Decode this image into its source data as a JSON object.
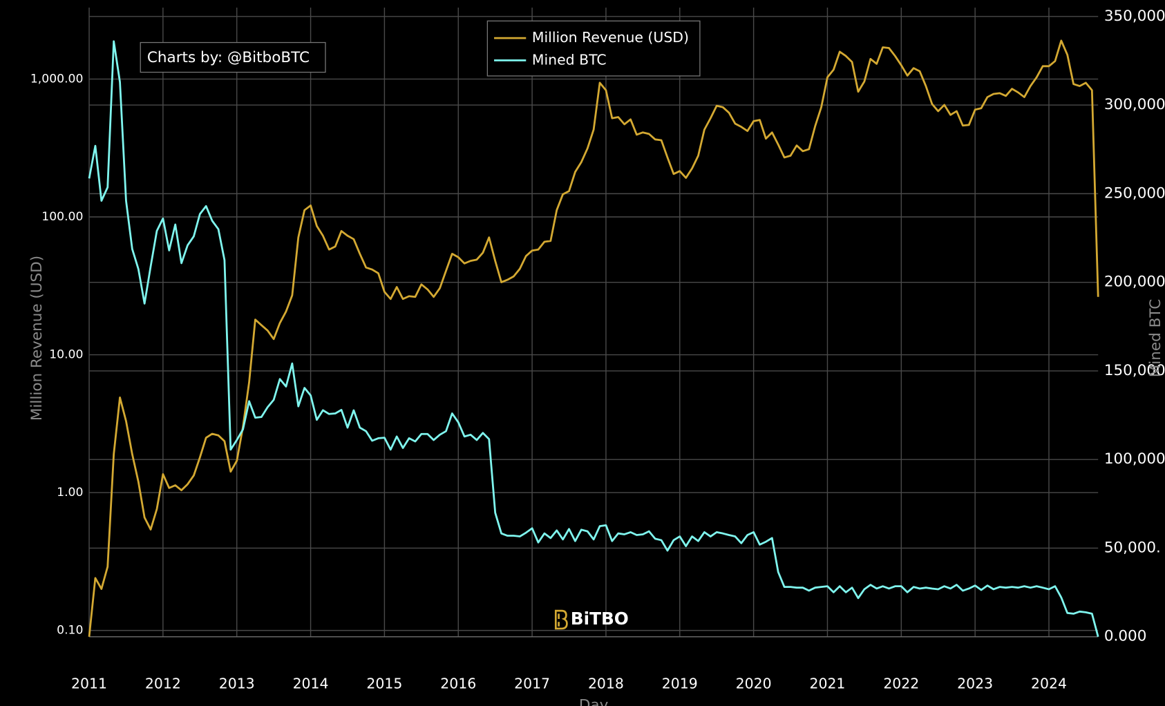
{
  "chart_data": {
    "type": "line",
    "annotation": "Charts by: @BitboBTC",
    "watermark": "BiTBO",
    "xlabel": "Day",
    "ylabel": "Million Revenue (USD)",
    "y2label": "Mined BTC",
    "legend": "top",
    "grid": true,
    "ylog": true,
    "xlim": [
      "2011-01",
      "2024-09"
    ],
    "xticks": [
      2011,
      2012,
      2013,
      2014,
      2015,
      2016,
      2017,
      2018,
      2019,
      2020,
      2021,
      2022,
      2023,
      2024
    ],
    "ylim": [
      0.09,
      3300
    ],
    "yticks": [
      {
        "value": 0.1,
        "label": "0.10"
      },
      {
        "value": 1,
        "label": "1.00"
      },
      {
        "value": 10,
        "label": "10.00"
      },
      {
        "value": 100,
        "label": "100.00"
      },
      {
        "value": 1000,
        "label": "1,000.00"
      }
    ],
    "y2lim": [
      0,
      355000
    ],
    "y2ticks": [
      {
        "value": 0,
        "label": "0.000"
      },
      {
        "value": 50000,
        "label": "50,000."
      },
      {
        "value": 100000,
        "label": "100,000"
      },
      {
        "value": 150000,
        "label": "150,000"
      },
      {
        "value": 200000,
        "label": "200,000"
      },
      {
        "value": 250000,
        "label": "250,000"
      },
      {
        "value": 300000,
        "label": "300,000"
      },
      {
        "value": 350000,
        "label": "350,000"
      }
    ],
    "x": [
      "2011-01",
      "2011-02",
      "2011-03",
      "2011-04",
      "2011-05",
      "2011-06",
      "2011-07",
      "2011-08",
      "2011-09",
      "2011-10",
      "2011-11",
      "2011-12",
      "2012-01",
      "2012-02",
      "2012-03",
      "2012-04",
      "2012-05",
      "2012-06",
      "2012-07",
      "2012-08",
      "2012-09",
      "2012-10",
      "2012-11",
      "2012-12",
      "2013-01",
      "2013-02",
      "2013-03",
      "2013-04",
      "2013-05",
      "2013-06",
      "2013-07",
      "2013-08",
      "2013-09",
      "2013-10",
      "2013-11",
      "2013-12",
      "2014-01",
      "2014-02",
      "2014-03",
      "2014-04",
      "2014-05",
      "2014-06",
      "2014-07",
      "2014-08",
      "2014-09",
      "2014-10",
      "2014-11",
      "2014-12",
      "2015-01",
      "2015-02",
      "2015-03",
      "2015-04",
      "2015-05",
      "2015-06",
      "2015-07",
      "2015-08",
      "2015-09",
      "2015-10",
      "2015-11",
      "2015-12",
      "2016-01",
      "2016-02",
      "2016-03",
      "2016-04",
      "2016-05",
      "2016-06",
      "2016-07",
      "2016-08",
      "2016-09",
      "2016-10",
      "2016-11",
      "2016-12",
      "2017-01",
      "2017-02",
      "2017-03",
      "2017-04",
      "2017-05",
      "2017-06",
      "2017-07",
      "2017-08",
      "2017-09",
      "2017-10",
      "2017-11",
      "2017-12",
      "2018-01",
      "2018-02",
      "2018-03",
      "2018-04",
      "2018-05",
      "2018-06",
      "2018-07",
      "2018-08",
      "2018-09",
      "2018-10",
      "2018-11",
      "2018-12",
      "2019-01",
      "2019-02",
      "2019-03",
      "2019-04",
      "2019-05",
      "2019-06",
      "2019-07",
      "2019-08",
      "2019-09",
      "2019-10",
      "2019-11",
      "2019-12",
      "2020-01",
      "2020-02",
      "2020-03",
      "2020-04",
      "2020-05",
      "2020-06",
      "2020-07",
      "2020-08",
      "2020-09",
      "2020-10",
      "2020-11",
      "2020-12",
      "2021-01",
      "2021-02",
      "2021-03",
      "2021-04",
      "2021-05",
      "2021-06",
      "2021-07",
      "2021-08",
      "2021-09",
      "2021-10",
      "2021-11",
      "2021-12",
      "2022-01",
      "2022-02",
      "2022-03",
      "2022-04",
      "2022-05",
      "2022-06",
      "2022-07",
      "2022-08",
      "2022-09",
      "2022-10",
      "2022-11",
      "2022-12",
      "2023-01",
      "2023-02",
      "2023-03",
      "2023-04",
      "2023-05",
      "2023-06",
      "2023-07",
      "2023-08",
      "2023-09",
      "2023-10",
      "2023-11",
      "2023-12",
      "2024-01",
      "2024-02",
      "2024-03",
      "2024-04",
      "2024-05",
      "2024-06",
      "2024-07",
      "2024-08",
      "2024-09"
    ],
    "series": [
      {
        "name": "Million Revenue (USD)",
        "color": "#d4a932",
        "axis": "y",
        "values": [
          0.09,
          0.24,
          0.2,
          0.29,
          1.9,
          4.9,
          3.3,
          1.9,
          1.2,
          0.66,
          0.54,
          0.76,
          1.36,
          1.08,
          1.13,
          1.04,
          1.15,
          1.33,
          1.8,
          2.5,
          2.67,
          2.6,
          2.36,
          1.42,
          1.7,
          3.0,
          6.3,
          18,
          16.4,
          15,
          13,
          17,
          20.6,
          27,
          71,
          112,
          121,
          86,
          73,
          58,
          61,
          79,
          73,
          69,
          54,
          43,
          41.5,
          39,
          28.6,
          25.4,
          31,
          25.4,
          26.6,
          26.3,
          32.4,
          29.8,
          26.3,
          30.4,
          40.6,
          54,
          51,
          46,
          48,
          49,
          55,
          71,
          48,
          33.6,
          35,
          37,
          42,
          52,
          57,
          58,
          66,
          67,
          112,
          146,
          154,
          212,
          250,
          314,
          430,
          940,
          830,
          520,
          530,
          470,
          510,
          395,
          410,
          400,
          365,
          360,
          270,
          205,
          215,
          192,
          225,
          278,
          430,
          520,
          640,
          625,
          570,
          475,
          450,
          420,
          495,
          505,
          370,
          410,
          335,
          270,
          278,
          330,
          300,
          310,
          455,
          625,
          1030,
          1170,
          1580,
          1470,
          1330,
          810,
          960,
          1400,
          1290,
          1700,
          1680,
          1470,
          1260,
          1060,
          1200,
          1140,
          890,
          660,
          585,
          650,
          550,
          585,
          460,
          465,
          600,
          615,
          740,
          780,
          790,
          755,
          850,
          800,
          740,
          890,
          1030,
          1240,
          1240,
          1350,
          1900,
          1500,
          920,
          890,
          940,
          830,
          26.3
        ]
      },
      {
        "name": "Mined BTC",
        "color": "#7ff5ee",
        "axis": "y2",
        "values": [
          258600,
          277000,
          246000,
          253600,
          336000,
          313000,
          246000,
          218800,
          207500,
          188000,
          209000,
          229000,
          236000,
          218000,
          232600,
          210800,
          220900,
          225900,
          238500,
          243000,
          234700,
          230000,
          212500,
          105600,
          111000,
          117000,
          132900,
          123600,
          124000,
          129500,
          133700,
          145400,
          141200,
          154200,
          130000,
          140400,
          136200,
          122400,
          127800,
          125700,
          126000,
          128000,
          118000,
          127800,
          118000,
          116000,
          110600,
          112000,
          112300,
          105600,
          113000,
          106500,
          112000,
          110200,
          114400,
          114400,
          111000,
          114000,
          116000,
          126000,
          121000,
          113000,
          114000,
          111000,
          115000,
          111500,
          70000,
          58300,
          57000,
          57000,
          56600,
          58700,
          61200,
          53200,
          58300,
          55700,
          60000,
          54900,
          60800,
          54000,
          60400,
          59500,
          54900,
          62400,
          62900,
          54000,
          58300,
          57800,
          59000,
          57400,
          57800,
          59500,
          55300,
          54500,
          48600,
          54500,
          56600,
          51100,
          56600,
          54000,
          59000,
          56600,
          59000,
          58300,
          57400,
          56600,
          52800,
          57400,
          59000,
          52000,
          53600,
          55700,
          36500,
          28100,
          28100,
          27700,
          27700,
          26000,
          27700,
          28100,
          28500,
          25100,
          28500,
          25100,
          27700,
          21800,
          26800,
          29300,
          27200,
          28500,
          27200,
          28500,
          28500,
          25100,
          28100,
          27200,
          27700,
          27200,
          26800,
          28500,
          27200,
          29300,
          26000,
          27200,
          28900,
          26400,
          28900,
          26800,
          28100,
          27700,
          28100,
          27700,
          28500,
          27700,
          28500,
          27700,
          26800,
          28500,
          22200,
          13400,
          13000,
          14200,
          13800,
          13000,
          0
        ]
      }
    ]
  }
}
